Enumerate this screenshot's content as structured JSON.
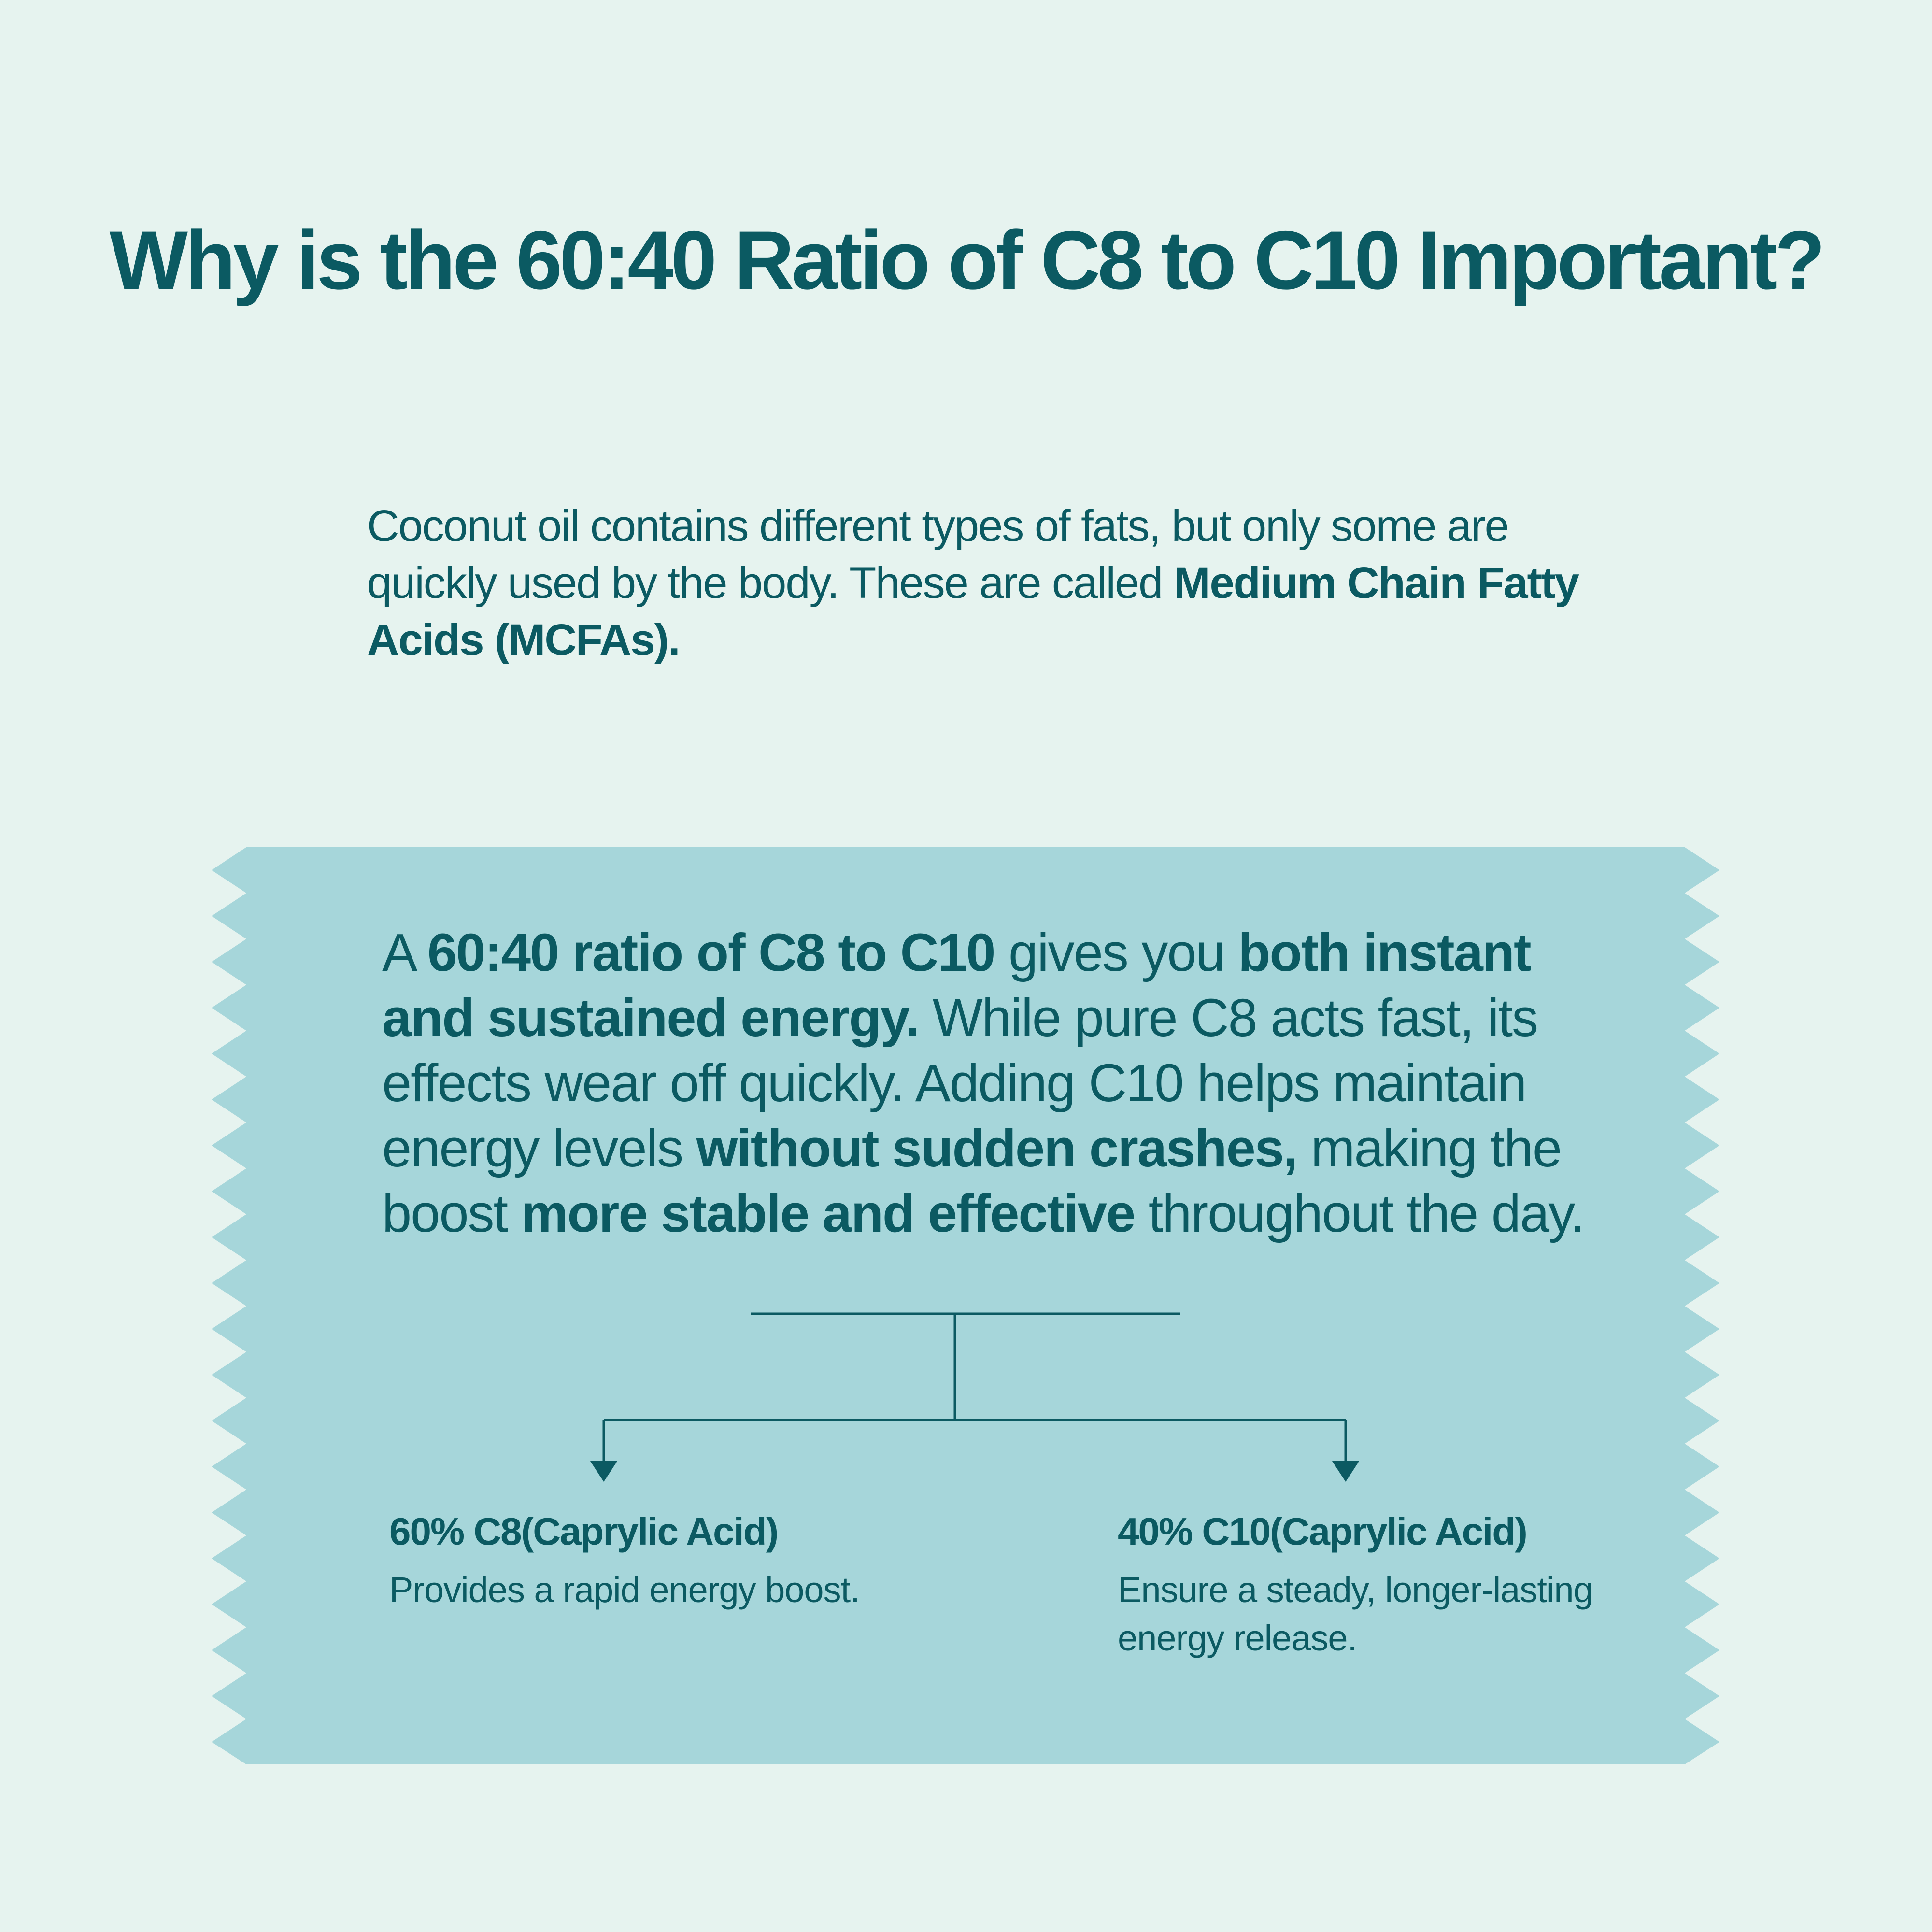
{
  "colors": {
    "background": "#e6f3ef",
    "panel": "#a6d6da",
    "text": "#0b5a62"
  },
  "title": "Why is the 60:40 Ratio of C8 to C10 Important?",
  "intro": {
    "text": "Coconut oil contains different types of fats, but only some are quickly used by the body. These are called ",
    "bold": "Medium Chain Fatty Acids (MCFAs)."
  },
  "ratio": {
    "t1": "A ",
    "b1": "60:40 ratio of C8 to C10",
    "t2": " gives you ",
    "b2": "both instant and sustained energy.",
    "t3": " While pure C8 acts fast, its effects wear off quickly. Adding C10 helps maintain energy levels ",
    "b3": "without sudden crashes,",
    "t4": " making the boost ",
    "b4": "more stable and effective",
    "t5": " throughout the day."
  },
  "options": [
    {
      "title": "60% C8(Caprylic Acid)",
      "desc": "Provides a rapid energy boost."
    },
    {
      "title": "40% C10(Caprylic Acid)",
      "desc": "Ensure a steady, longer-lasting energy release."
    }
  ]
}
